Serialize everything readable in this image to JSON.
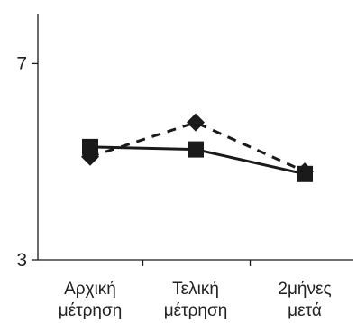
{
  "chart_data": {
    "type": "line",
    "categories": [
      [
        "Αρχική",
        "μέτρηση"
      ],
      [
        "Τελική",
        "μέτρηση"
      ],
      [
        "2μήνες",
        "μετά"
      ]
    ],
    "ylim": [
      3,
      8
    ],
    "yticks": [
      3,
      7
    ],
    "grid": false,
    "legend": "none",
    "series": [
      {
        "style": "solid",
        "marker": "square",
        "color": "#1a1a1a",
        "values": [
          5.3,
          5.25,
          4.75
        ]
      },
      {
        "style": "dashed",
        "marker": "diamond",
        "color": "#1a1a1a",
        "values": [
          5.1,
          5.8,
          4.8
        ]
      }
    ]
  }
}
